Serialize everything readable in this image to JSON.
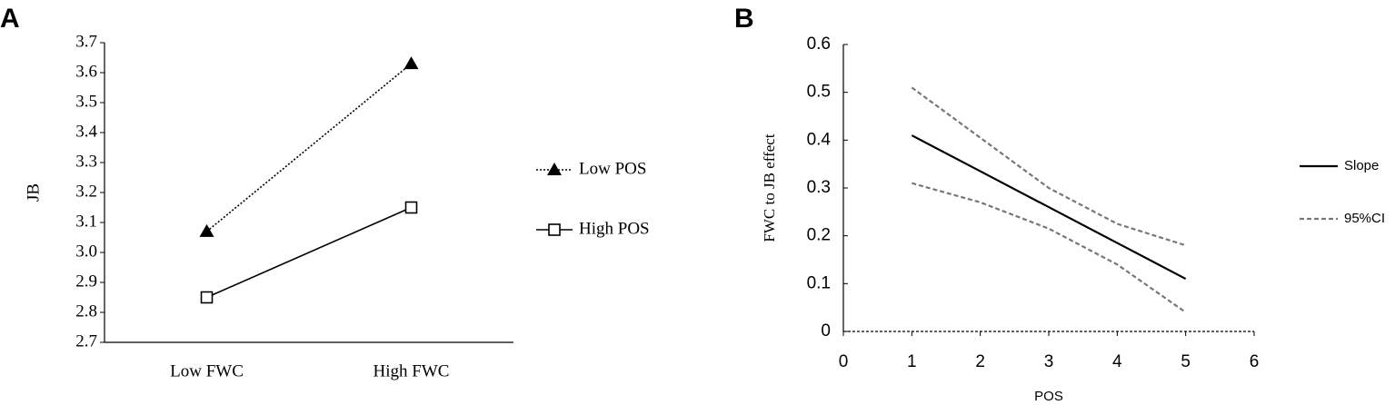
{
  "chart_data": [
    {
      "type": "line",
      "panel": "A",
      "ylabel": "JB",
      "categories": [
        "Low FWC",
        "High FWC"
      ],
      "series": [
        {
          "name": "Low POS",
          "color": "#000000",
          "marker": "triangle",
          "dash": "dotted",
          "values": [
            3.07,
            3.63
          ]
        },
        {
          "name": "High POS",
          "color": "#000000",
          "marker": "square",
          "dash": "solid",
          "values": [
            2.85,
            3.15
          ]
        }
      ],
      "ylim": [
        2.7,
        3.7
      ],
      "yticks": [
        2.7,
        2.8,
        2.9,
        {
          "value": 3,
          "label": "3.0"
        },
        3.1,
        3.2,
        3.3,
        3.4,
        3.5,
        3.6,
        3.7
      ],
      "legend": "right"
    },
    {
      "type": "line",
      "panel": "B",
      "xlabel": "POS",
      "ylabel": "FWC to JB effect",
      "x": [
        1,
        2,
        3,
        4,
        5
      ],
      "series": [
        {
          "name": "Slope",
          "color": "#000000",
          "dash": "solid",
          "values": [
            0.41,
            0.335,
            0.26,
            0.185,
            0.11
          ]
        },
        {
          "name": "95%CI",
          "color": "#777777",
          "dash": "dashed",
          "values": [
            0.51,
            0.405,
            0.3,
            0.225,
            0.18
          ],
          "lower": [
            0.31,
            0.27,
            0.215,
            0.14,
            0.04
          ]
        }
      ],
      "xlim": [
        0,
        6
      ],
      "xticks": [
        0,
        1,
        2,
        3,
        4,
        5,
        6
      ],
      "ylim": [
        0,
        0.6
      ],
      "yticks": [
        0,
        0.1,
        0.2,
        0.3,
        0.4,
        0.5,
        0.6
      ],
      "legend": "right"
    }
  ]
}
